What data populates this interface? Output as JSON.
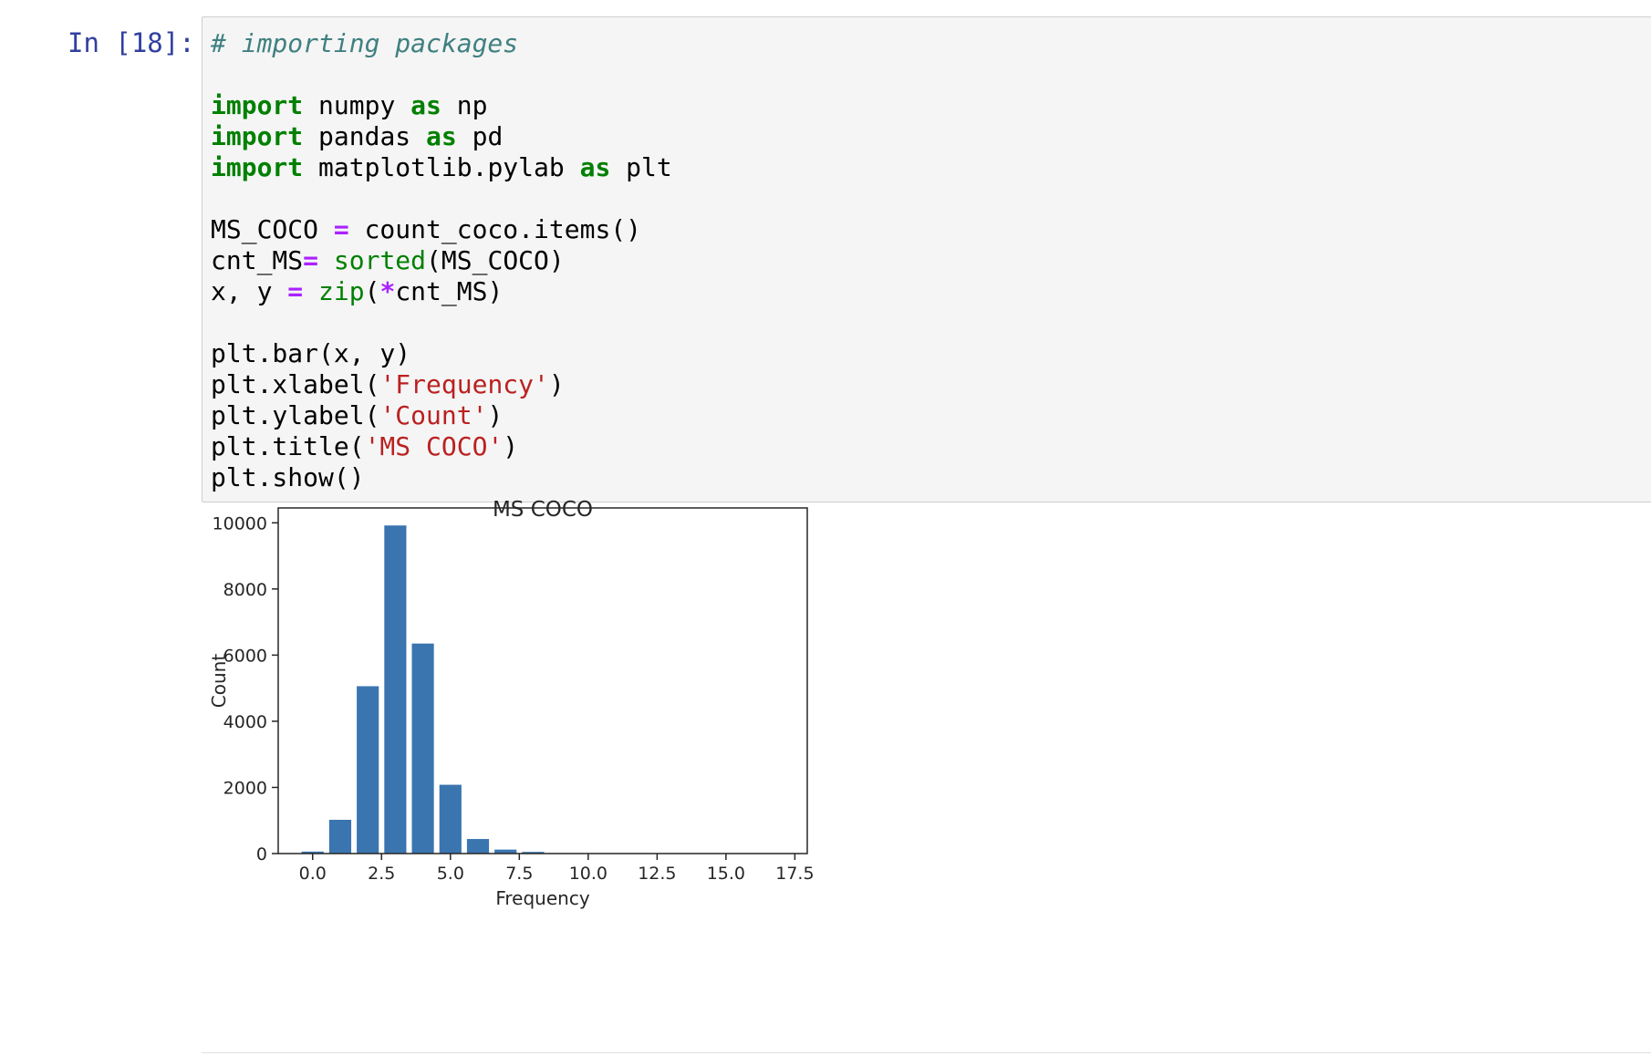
{
  "cell": {
    "prompt": "In [18]:",
    "code_lines": [
      [
        {
          "t": "comment",
          "v": "# importing packages"
        }
      ],
      [],
      [
        {
          "t": "kw",
          "v": "import"
        },
        {
          "t": "plain",
          "v": " numpy "
        },
        {
          "t": "kw",
          "v": "as"
        },
        {
          "t": "plain",
          "v": " np"
        }
      ],
      [
        {
          "t": "kw",
          "v": "import"
        },
        {
          "t": "plain",
          "v": " pandas "
        },
        {
          "t": "kw",
          "v": "as"
        },
        {
          "t": "plain",
          "v": " pd"
        }
      ],
      [
        {
          "t": "kw",
          "v": "import"
        },
        {
          "t": "plain",
          "v": " matplotlib.pylab "
        },
        {
          "t": "kw",
          "v": "as"
        },
        {
          "t": "plain",
          "v": " plt"
        }
      ],
      [],
      [
        {
          "t": "plain",
          "v": "MS_COCO "
        },
        {
          "t": "op",
          "v": "="
        },
        {
          "t": "plain",
          "v": " count_coco.items()"
        }
      ],
      [
        {
          "t": "plain",
          "v": "cnt_MS"
        },
        {
          "t": "op",
          "v": "="
        },
        {
          "t": "plain",
          "v": " "
        },
        {
          "t": "bi",
          "v": "sorted"
        },
        {
          "t": "plain",
          "v": "(MS_COCO)"
        }
      ],
      [
        {
          "t": "plain",
          "v": "x, y "
        },
        {
          "t": "op",
          "v": "="
        },
        {
          "t": "plain",
          "v": " "
        },
        {
          "t": "bi",
          "v": "zip"
        },
        {
          "t": "plain",
          "v": "("
        },
        {
          "t": "op",
          "v": "*"
        },
        {
          "t": "plain",
          "v": "cnt_MS)"
        }
      ],
      [],
      [
        {
          "t": "plain",
          "v": "plt.bar(x, y)"
        }
      ],
      [
        {
          "t": "plain",
          "v": "plt.xlabel("
        },
        {
          "t": "str",
          "v": "'Frequency'"
        },
        {
          "t": "plain",
          "v": ")"
        }
      ],
      [
        {
          "t": "plain",
          "v": "plt.ylabel("
        },
        {
          "t": "str",
          "v": "'Count'"
        },
        {
          "t": "plain",
          "v": ")"
        }
      ],
      [
        {
          "t": "plain",
          "v": "plt.title("
        },
        {
          "t": "str",
          "v": "'MS COCO'"
        },
        {
          "t": "plain",
          "v": ")"
        }
      ],
      [
        {
          "t": "plain",
          "v": "plt.show()"
        }
      ]
    ]
  },
  "colors": {
    "prompt": "#303F9F",
    "bar": "#3a75b0",
    "cell_background": "#f5f5f5"
  },
  "chart_data": {
    "type": "bar",
    "title": "MS COCO",
    "xlabel": "Frequency",
    "ylabel": "Count",
    "x": [
      0,
      1,
      2,
      3,
      4,
      5,
      6,
      7,
      8,
      9,
      10,
      11,
      12,
      13,
      14,
      15,
      16,
      17
    ],
    "values": [
      60,
      1020,
      5060,
      9920,
      6350,
      2080,
      440,
      120,
      50,
      15,
      8,
      4,
      3,
      2,
      1,
      1,
      1,
      1
    ],
    "xlim": [
      -1.25,
      17.95
    ],
    "ylim": [
      0,
      10450
    ],
    "xticks": [
      0.0,
      2.5,
      5.0,
      7.5,
      10.0,
      12.5,
      15.0,
      17.5
    ],
    "xtick_labels": [
      "0.0",
      "2.5",
      "5.0",
      "7.5",
      "10.0",
      "12.5",
      "15.0",
      "17.5"
    ],
    "yticks": [
      0,
      2000,
      4000,
      6000,
      8000,
      10000
    ],
    "ytick_labels": [
      "0",
      "2000",
      "4000",
      "6000",
      "8000",
      "10000"
    ],
    "bar_width": 0.8,
    "grid": false
  }
}
